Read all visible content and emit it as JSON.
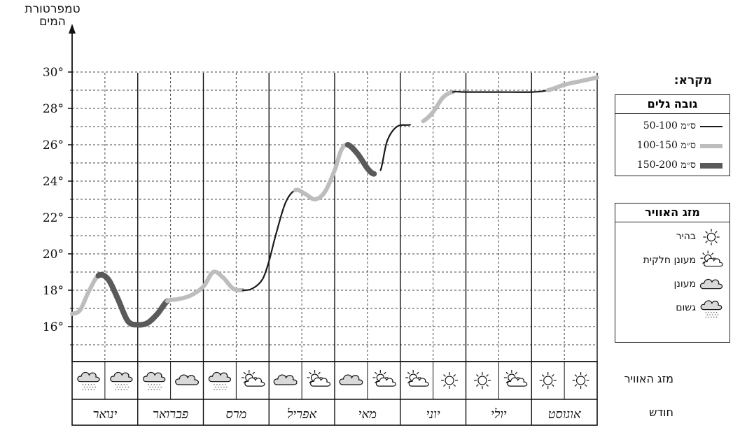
{
  "chart_data": {
    "type": "line",
    "y_title_line1": "טמפרטורת",
    "y_title_line2": "המים",
    "y_ticks": [
      "16°",
      "18°",
      "20°",
      "22°",
      "24°",
      "26°",
      "28°",
      "30°"
    ],
    "ylim": [
      14,
      30.5
    ],
    "months": [
      "ינואר",
      "פברואר",
      "מרס",
      "אפריל",
      "מאי",
      "יוני",
      "יולי",
      "אוגוסט"
    ],
    "month_row_label": "חודש",
    "weather_row_label": "מזג האוויר",
    "weather": [
      "rain",
      "rain",
      "rain",
      "cloudy",
      "rain",
      "partly",
      "cloudy",
      "partly",
      "cloudy",
      "partly",
      "partly",
      "sunny",
      "sunny",
      "partly",
      "sunny",
      "sunny"
    ],
    "temperature": [
      {
        "x": 0.0,
        "y": 16.7
      },
      {
        "x": 0.12,
        "y": 16.9
      },
      {
        "x": 0.25,
        "y": 17.9
      },
      {
        "x": 0.4,
        "y": 18.8
      },
      {
        "x": 0.55,
        "y": 18.6
      },
      {
        "x": 0.7,
        "y": 17.5
      },
      {
        "x": 0.85,
        "y": 16.3
      },
      {
        "x": 1.0,
        "y": 16.1
      },
      {
        "x": 1.15,
        "y": 16.2
      },
      {
        "x": 1.3,
        "y": 16.7
      },
      {
        "x": 1.45,
        "y": 17.4
      },
      {
        "x": 1.6,
        "y": 17.5
      },
      {
        "x": 1.8,
        "y": 17.7
      },
      {
        "x": 2.0,
        "y": 18.2
      },
      {
        "x": 2.15,
        "y": 19.0
      },
      {
        "x": 2.3,
        "y": 18.7
      },
      {
        "x": 2.45,
        "y": 18.1
      },
      {
        "x": 2.6,
        "y": 18.0
      },
      {
        "x": 2.75,
        "y": 18.1
      },
      {
        "x": 2.9,
        "y": 18.6
      },
      {
        "x": 3.0,
        "y": 19.6
      },
      {
        "x": 3.1,
        "y": 21.0
      },
      {
        "x": 3.25,
        "y": 22.8
      },
      {
        "x": 3.4,
        "y": 23.5
      },
      {
        "x": 3.55,
        "y": 23.3
      },
      {
        "x": 3.7,
        "y": 23.0
      },
      {
        "x": 3.85,
        "y": 23.4
      },
      {
        "x": 4.0,
        "y": 24.6
      },
      {
        "x": 4.1,
        "y": 25.7
      },
      {
        "x": 4.2,
        "y": 26.0
      },
      {
        "x": 4.35,
        "y": 25.5
      },
      {
        "x": 4.5,
        "y": 24.7
      },
      {
        "x": 4.6,
        "y": 24.4
      },
      {
        "x": 4.7,
        "y": 24.6
      },
      {
        "x": 4.8,
        "y": 26.2
      },
      {
        "x": 4.95,
        "y": 27.0
      },
      {
        "x": 5.15,
        "y": 27.1
      },
      {
        "x": 5.35,
        "y": 27.3
      },
      {
        "x": 5.5,
        "y": 27.8
      },
      {
        "x": 5.65,
        "y": 28.6
      },
      {
        "x": 5.8,
        "y": 28.9
      },
      {
        "x": 6.0,
        "y": 28.9
      },
      {
        "x": 6.5,
        "y": 28.9
      },
      {
        "x": 7.0,
        "y": 28.9
      },
      {
        "x": 7.25,
        "y": 29.0
      },
      {
        "x": 7.5,
        "y": 29.3
      },
      {
        "x": 7.75,
        "y": 29.5
      },
      {
        "x": 8.0,
        "y": 29.7
      }
    ],
    "wave_segments": [
      {
        "from": 0.0,
        "to": 0.4,
        "class": "medium"
      },
      {
        "from": 0.4,
        "to": 1.45,
        "class": "high"
      },
      {
        "from": 1.45,
        "to": 2.6,
        "class": "medium"
      },
      {
        "from": 2.6,
        "to": 3.4,
        "class": "low"
      },
      {
        "from": 3.4,
        "to": 4.2,
        "class": "medium"
      },
      {
        "from": 4.2,
        "to": 4.65,
        "class": "high"
      },
      {
        "from": 4.65,
        "to": 5.3,
        "class": "low"
      },
      {
        "from": 5.3,
        "to": 5.8,
        "class": "medium"
      },
      {
        "from": 5.8,
        "to": 7.25,
        "class": "low"
      },
      {
        "from": 7.25,
        "to": 8.0,
        "class": "medium"
      }
    ]
  },
  "legend": {
    "title": "מקרא:",
    "waves_header": "גובה גלים",
    "waves": [
      {
        "label": "50-100 ס״מ",
        "color": "#1a1a1a",
        "class": "low"
      },
      {
        "label": "100-150 ס״מ",
        "color": "#bdbdbd",
        "class": "medium"
      },
      {
        "label": "150-200 ס״מ",
        "color": "#5a5a5a",
        "class": "high"
      }
    ],
    "weather_header": "מזג האוויר",
    "weather_items": [
      {
        "label": "בהיר",
        "icon": "sunny"
      },
      {
        "label": "מעונן חלקית",
        "icon": "partly"
      },
      {
        "label": "מעונן",
        "icon": "cloudy"
      },
      {
        "label": "גשום",
        "icon": "rain"
      }
    ]
  }
}
